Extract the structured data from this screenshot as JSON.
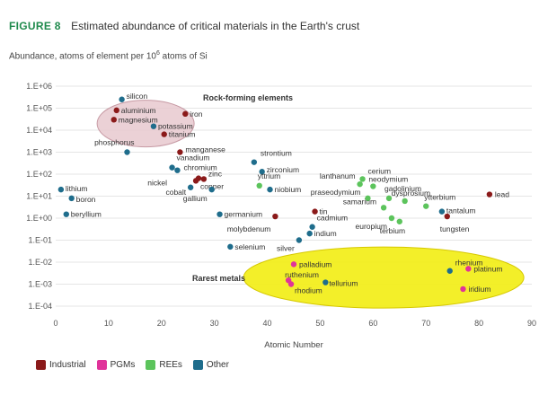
{
  "figure": {
    "label": "FIGURE 8",
    "title": "Estimated abundance of critical materials in the Earth's crust",
    "subtitle_prefix": "Abundance, atoms of element per 10",
    "subtitle_sup": "6",
    "subtitle_suffix": " atoms of Si"
  },
  "legend": [
    {
      "name": "Industrial",
      "color": "#8b1a1a"
    },
    {
      "name": "PGMs",
      "color": "#e0339a"
    },
    {
      "name": "REEs",
      "color": "#5cc45c"
    },
    {
      "name": "Other",
      "color": "#1f6d8c"
    }
  ],
  "chart_data": {
    "type": "scatter",
    "title": "Estimated abundance of critical materials in the Earth's crust",
    "xlabel": "Atomic Number",
    "ylabel": "Abundance, atoms of element per 10^6 atoms of Si",
    "xlim": [
      0,
      90
    ],
    "ylim_log10": [
      -4,
      6
    ],
    "y_scale": "log",
    "x_ticks": [
      0,
      10,
      20,
      30,
      40,
      50,
      60,
      70,
      80,
      90
    ],
    "y_ticks": [
      "1.E+06",
      "1.E+05",
      "1.E+04",
      "1.E+03",
      "1.E+02",
      "1.E+01",
      "1.E+00",
      "1.E-01",
      "1.E-02",
      "1.E-03",
      "1.E-04"
    ],
    "grid": "horizontal",
    "annotations": [
      {
        "text": "Rock-forming elements"
      },
      {
        "text": "Rarest metals"
      }
    ],
    "points": [
      {
        "label": "lithium",
        "x": 1,
        "y": 20,
        "group": "Other"
      },
      {
        "label": "boron",
        "x": 3,
        "y": 8,
        "group": "Other"
      },
      {
        "label": "beryllium",
        "x": 2,
        "y": 1.5,
        "group": "Other"
      },
      {
        "label": "silicon",
        "x": 12.5,
        "y": 250000,
        "group": "Other"
      },
      {
        "label": "aluminium",
        "x": 11.5,
        "y": 80000,
        "group": "Industrial"
      },
      {
        "label": "magnesium",
        "x": 11,
        "y": 30000,
        "group": "Industrial"
      },
      {
        "label": "iron",
        "x": 24.5,
        "y": 55000,
        "group": "Industrial"
      },
      {
        "label": "potassium",
        "x": 18.5,
        "y": 15000,
        "group": "Other"
      },
      {
        "label": "titanium",
        "x": 20.5,
        "y": 6500,
        "group": "Industrial"
      },
      {
        "label": "phosphorus",
        "x": 13.5,
        "y": 1000,
        "group": "Other"
      },
      {
        "label": "manganese",
        "x": 23.5,
        "y": 1000,
        "group": "Industrial"
      },
      {
        "label": "vanadium",
        "x": 22,
        "y": 200,
        "group": "Other"
      },
      {
        "label": "chromium",
        "x": 23,
        "y": 150,
        "group": "Other"
      },
      {
        "label": "zinc",
        "x": 28,
        "y": 60,
        "group": "Industrial"
      },
      {
        "label": "nickel",
        "x": 27,
        "y": 65,
        "group": "Industrial"
      },
      {
        "label": "copper",
        "x": 26.5,
        "y": 50,
        "group": "Industrial"
      },
      {
        "label": "cobalt",
        "x": 25.5,
        "y": 25,
        "group": "Other"
      },
      {
        "label": "gallium",
        "x": 29.5,
        "y": 20,
        "group": "Other"
      },
      {
        "label": "strontium",
        "x": 37.5,
        "y": 350,
        "group": "Other"
      },
      {
        "label": "zirconium",
        "x": 39,
        "y": 130,
        "group": "Other"
      },
      {
        "label": "yttrium",
        "x": 38.5,
        "y": 30,
        "group": "REEs"
      },
      {
        "label": "niobium",
        "x": 40.5,
        "y": 20,
        "group": "Other"
      },
      {
        "label": "germanium",
        "x": 31,
        "y": 1.5,
        "group": "Other"
      },
      {
        "label": "molybdenum",
        "x": 41.5,
        "y": 1.2,
        "group": "Industrial"
      },
      {
        "label": "selenium",
        "x": 33,
        "y": 0.05,
        "group": "Other"
      },
      {
        "label": "tin",
        "x": 49,
        "y": 2,
        "group": "Industrial"
      },
      {
        "label": "cadmium",
        "x": 48.5,
        "y": 0.4,
        "group": "Other"
      },
      {
        "label": "indium",
        "x": 48,
        "y": 0.2,
        "group": "Other"
      },
      {
        "label": "silver",
        "x": 46,
        "y": 0.1,
        "group": "Other"
      },
      {
        "label": "lanthanum",
        "x": 57.5,
        "y": 35,
        "group": "REEs"
      },
      {
        "label": "cerium",
        "x": 58,
        "y": 60,
        "group": "REEs"
      },
      {
        "label": "neodymium",
        "x": 60,
        "y": 28,
        "group": "REEs"
      },
      {
        "label": "gadolinium",
        "x": 63,
        "y": 8,
        "group": "REEs"
      },
      {
        "label": "praseodymium",
        "x": 59,
        "y": 8,
        "group": "REEs"
      },
      {
        "label": "samarium",
        "x": 62,
        "y": 3,
        "group": "REEs"
      },
      {
        "label": "europium",
        "x": 63.5,
        "y": 1,
        "group": "REEs"
      },
      {
        "label": "dysprosium",
        "x": 66,
        "y": 6,
        "group": "REEs"
      },
      {
        "label": "ytterbium",
        "x": 70,
        "y": 3.5,
        "group": "REEs"
      },
      {
        "label": "terbium",
        "x": 65,
        "y": 0.7,
        "group": "REEs"
      },
      {
        "label": "tantalum",
        "x": 73,
        "y": 2,
        "group": "Other"
      },
      {
        "label": "tungsten",
        "x": 74,
        "y": 1.2,
        "group": "Industrial"
      },
      {
        "label": "lead",
        "x": 82,
        "y": 12,
        "group": "Industrial"
      },
      {
        "label": "palladium",
        "x": 45,
        "y": 0.008,
        "group": "PGMs"
      },
      {
        "label": "ruthenium",
        "x": 44,
        "y": 0.0015,
        "group": "PGMs"
      },
      {
        "label": "rhodium",
        "x": 44.5,
        "y": 0.001,
        "group": "PGMs"
      },
      {
        "label": "tellurium",
        "x": 51,
        "y": 0.0012,
        "group": "Other"
      },
      {
        "label": "platinum",
        "x": 78,
        "y": 0.005,
        "group": "PGMs"
      },
      {
        "label": "rhenium",
        "x": 74.5,
        "y": 0.004,
        "group": "Other"
      },
      {
        "label": "iridium",
        "x": 77,
        "y": 0.0006,
        "group": "PGMs"
      }
    ]
  }
}
